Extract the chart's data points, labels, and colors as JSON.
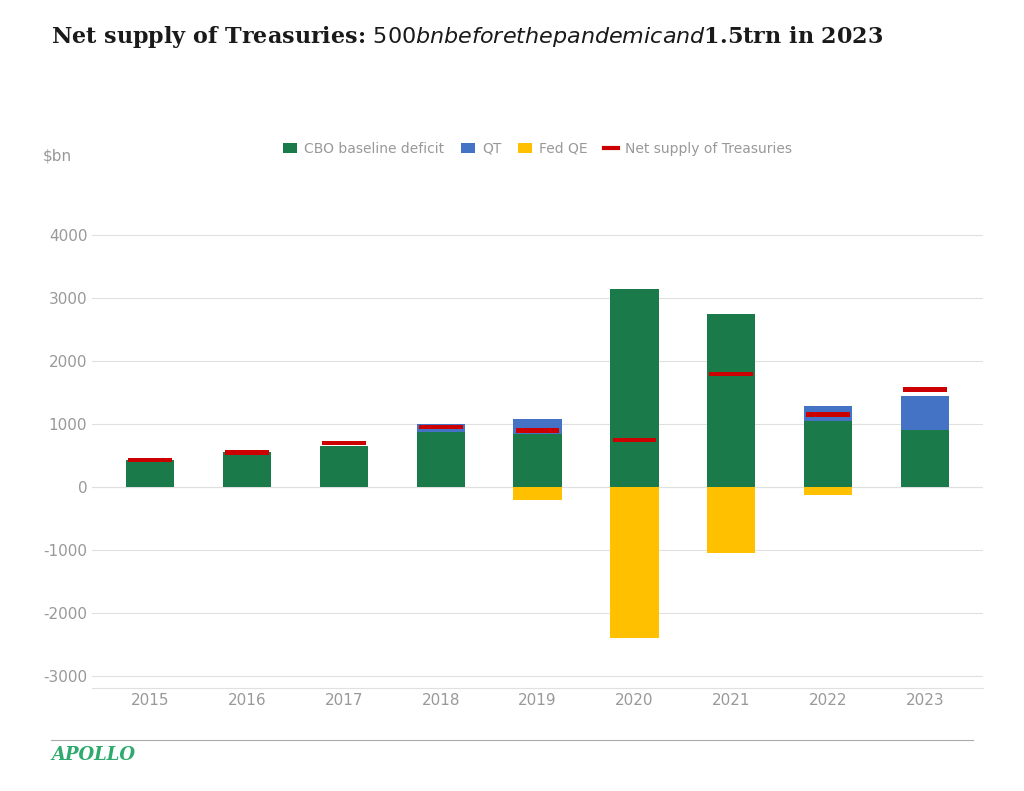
{
  "title": "Net supply of Treasuries: $500bn before the pandemic and $1.5trn in 2023",
  "ylabel": "$bn",
  "years": [
    2015,
    2016,
    2017,
    2018,
    2019,
    2020,
    2021,
    2022,
    2023
  ],
  "cbo_deficit": [
    430,
    560,
    650,
    870,
    850,
    3150,
    2750,
    1050,
    900
  ],
  "qt": [
    0,
    0,
    0,
    130,
    230,
    0,
    0,
    230,
    550
  ],
  "fed_qe": [
    0,
    0,
    0,
    0,
    -200,
    -2400,
    -1050,
    -130,
    0
  ],
  "net_supply": [
    430,
    550,
    700,
    950,
    900,
    750,
    1800,
    1150,
    1550
  ],
  "colors": {
    "cbo": "#1a7a4a",
    "qt": "#4472c4",
    "fed_qe": "#ffc000",
    "net_supply": "#cc0000",
    "background": "#ffffff",
    "axis_text": "#999999",
    "title_text": "#1a1a1a",
    "apollo_text": "#2eaa6e",
    "grid_line": "#e0e0e0"
  },
  "ylim": [
    -3200,
    4600
  ],
  "yticks": [
    -3000,
    -2000,
    -1000,
    0,
    1000,
    2000,
    3000,
    4000
  ],
  "legend_labels": [
    "CBO baseline deficit",
    "QT",
    "Fed QE",
    "Net supply of Treasuries"
  ],
  "apollo_label": "APOLLO"
}
